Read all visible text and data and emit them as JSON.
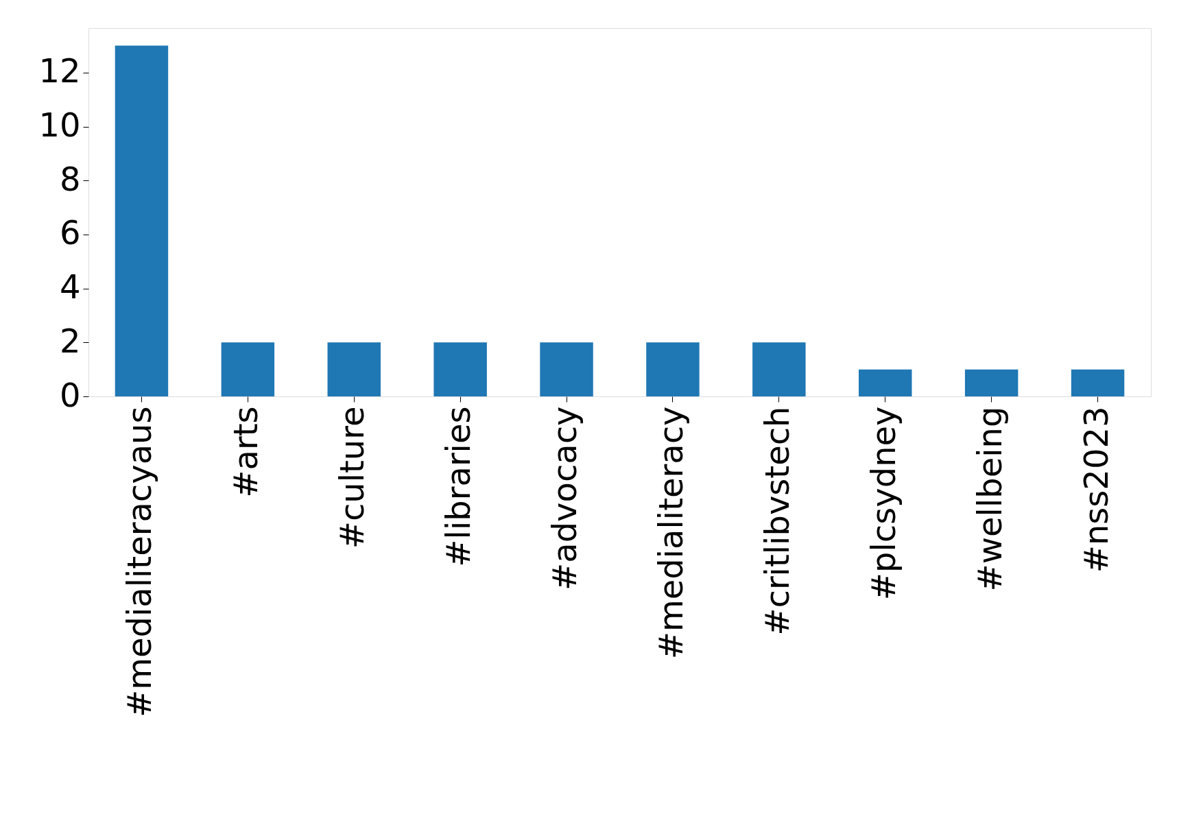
{
  "chart_data": {
    "type": "bar",
    "categories": [
      "#medialiteracyaus",
      "#arts",
      "#culture",
      "#libraries",
      "#advocacy",
      "#medialiteracy",
      "#critlibvstech",
      "#plcsydney",
      "#wellbeing",
      "#nss2023"
    ],
    "values": [
      13,
      2,
      2,
      2,
      2,
      2,
      2,
      1,
      1,
      1
    ],
    "color": "#1f77b4",
    "ylim": [
      0,
      13.65
    ],
    "yticks": [
      0,
      2,
      4,
      6,
      8,
      10,
      12
    ],
    "grid": false
  }
}
